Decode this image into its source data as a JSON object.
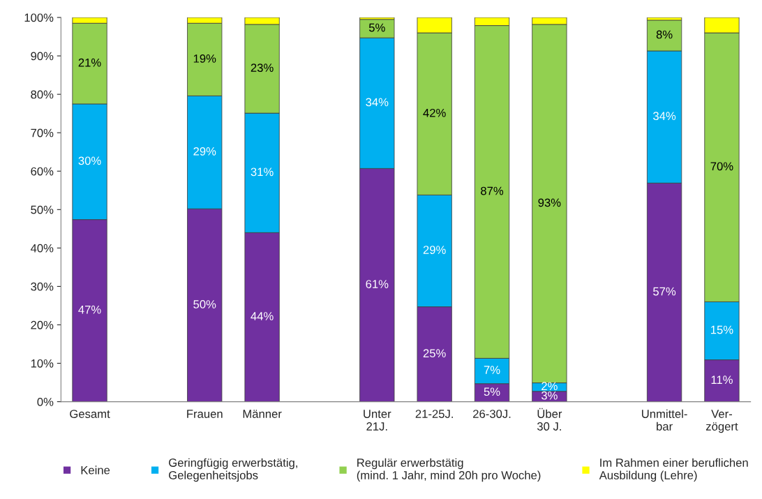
{
  "chart_data": {
    "type": "bar",
    "stacked": true,
    "categories": [
      "Gesamt",
      null,
      "Frauen",
      "Männer",
      null,
      "Unter\n21J.",
      "21-25J.",
      "26-30J.",
      "Über\n30 J.",
      null,
      "Unmittel-\nbar",
      "Ver-\nzögert"
    ],
    "series": [
      {
        "name": "Keine",
        "color": "#7030a0",
        "values": [
          47.4,
          null,
          50.2,
          44.0,
          null,
          60.7,
          24.7,
          4.7,
          2.7,
          null,
          56.9,
          10.9
        ],
        "value_labels": [
          "47%",
          null,
          "50%",
          "44%",
          null,
          "61%",
          "25%",
          "5%",
          "3%",
          null,
          "57%",
          "11%"
        ]
      },
      {
        "name": "Geringfügig erwerbstätig,\nGelegenheitsjobs",
        "color": "#00b0f0",
        "values": [
          30.1,
          null,
          29.4,
          31.1,
          null,
          34.0,
          29.1,
          6.6,
          2.2,
          null,
          34.4,
          15.1
        ],
        "value_labels": [
          "30%",
          null,
          "29%",
          "31%",
          null,
          "34%",
          "29%",
          "7%",
          "2%",
          null,
          "34%",
          "15%"
        ]
      },
      {
        "name": "Regulär erwerbstätig\n(mind. 1 Jahr, mind 20h pro Woche)",
        "color": "#92d050",
        "values": [
          21.0,
          null,
          18.9,
          23.1,
          null,
          4.8,
          42.2,
          86.6,
          93.3,
          null,
          8.0,
          70.0
        ],
        "value_labels": [
          "21%",
          null,
          "19%",
          "23%",
          null,
          "5%",
          "42%",
          "87%",
          "93%",
          null,
          "8%",
          "70%"
        ]
      },
      {
        "name": "Im Rahmen einer beruflichen\nAusbildung (Lehre)",
        "color": "#ffff00",
        "values": [
          1.5,
          null,
          1.5,
          1.8,
          null,
          0.5,
          4.0,
          2.1,
          1.8,
          null,
          0.7,
          4.0
        ]
      }
    ],
    "ylim": [
      0,
      100
    ],
    "yticks": [
      {
        "value": 0,
        "label": "0%"
      },
      {
        "value": 10,
        "label": "10%"
      },
      {
        "value": 20,
        "label": "20%"
      },
      {
        "value": 30,
        "label": "30%"
      },
      {
        "value": 40,
        "label": "40%"
      },
      {
        "value": 50,
        "label": "50%"
      },
      {
        "value": 60,
        "label": "60%"
      },
      {
        "value": 70,
        "label": "70%"
      },
      {
        "value": 80,
        "label": "80%"
      },
      {
        "value": 90,
        "label": "90%"
      },
      {
        "value": 100,
        "label": "100%"
      }
    ],
    "legend": "bottom",
    "grid": false
  }
}
